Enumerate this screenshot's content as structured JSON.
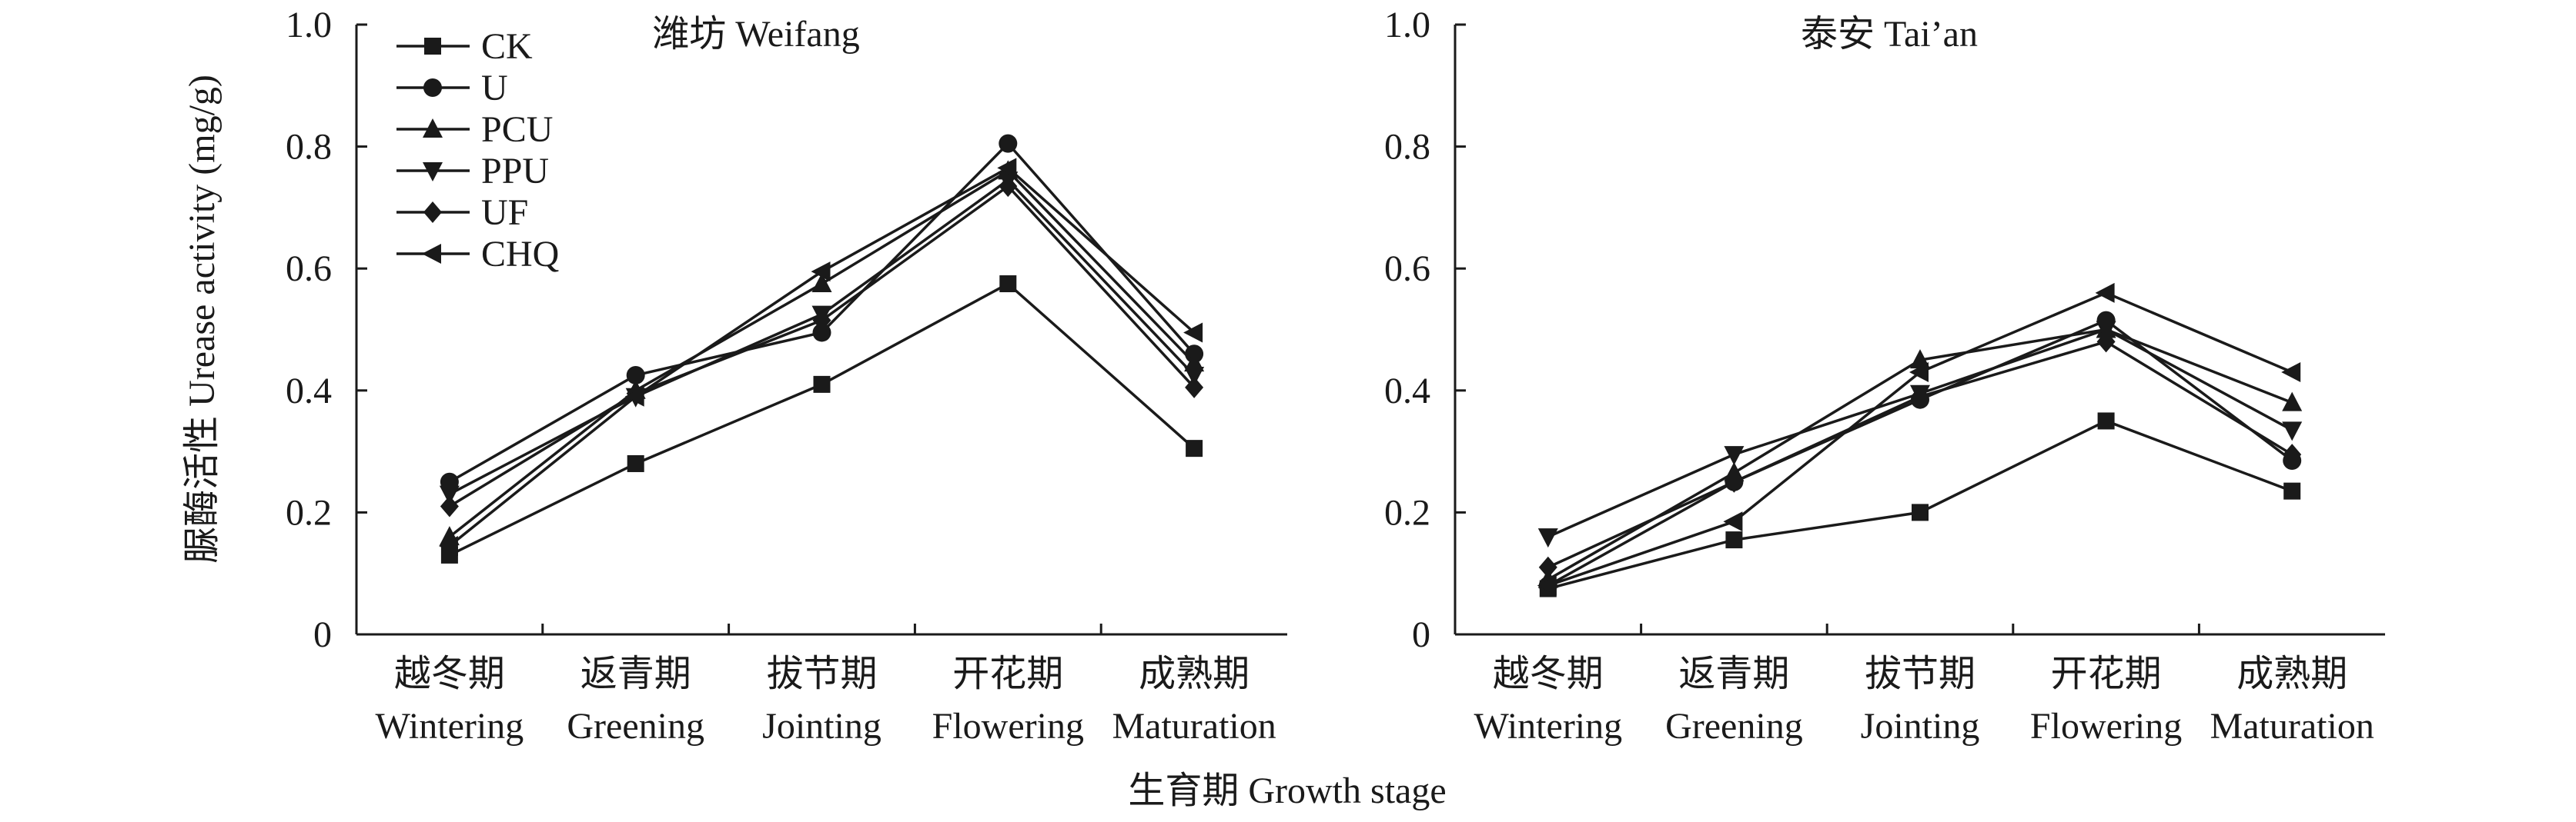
{
  "chart_data": {
    "type": "line",
    "xlabel": "生育期 Growth stage",
    "ylabel": "脲酶活性 Urease activity (mg/g)",
    "categories_cn": [
      "越冬期",
      "返青期",
      "拔节期",
      "开花期",
      "成熟期"
    ],
    "categories_en": [
      "Wintering",
      "Greening",
      "Jointing",
      "Flowering",
      "Maturation"
    ],
    "yticks": [
      "0",
      "0.2",
      "0.4",
      "0.6",
      "0.8",
      "1.0"
    ],
    "ylim": [
      0,
      1.0
    ],
    "legend": {
      "placement": "top-left of first panel",
      "entries": [
        {
          "name": "CK",
          "marker": "square"
        },
        {
          "name": "U",
          "marker": "circle"
        },
        {
          "name": "PCU",
          "marker": "triangle-up"
        },
        {
          "name": "PPU",
          "marker": "triangle-down"
        },
        {
          "name": "UF",
          "marker": "diamond"
        },
        {
          "name": "CHQ",
          "marker": "triangle-left"
        }
      ]
    },
    "panels": [
      {
        "title": "潍坊 Weifang",
        "series": [
          {
            "name": "CK",
            "values": [
              0.13,
              0.28,
              0.41,
              0.575,
              0.305
            ]
          },
          {
            "name": "U",
            "values": [
              0.25,
              0.425,
              0.495,
              0.805,
              0.46
            ]
          },
          {
            "name": "PCU",
            "values": [
              0.16,
              0.4,
              0.575,
              0.76,
              0.445
            ]
          },
          {
            "name": "PPU",
            "values": [
              0.23,
              0.39,
              0.525,
              0.745,
              0.425
            ]
          },
          {
            "name": "UF",
            "values": [
              0.21,
              0.395,
              0.515,
              0.735,
              0.405
            ]
          },
          {
            "name": "CHQ",
            "values": [
              0.145,
              0.39,
              0.595,
              0.765,
              0.495
            ]
          }
        ]
      },
      {
        "title": "泰安 Tai’an",
        "series": [
          {
            "name": "CK",
            "values": [
              0.075,
              0.155,
              0.2,
              0.35,
              0.235
            ]
          },
          {
            "name": "U",
            "values": [
              0.08,
              0.25,
              0.385,
              0.515,
              0.285
            ]
          },
          {
            "name": "PCU",
            "values": [
              0.09,
              0.265,
              0.45,
              0.5,
              0.38
            ]
          },
          {
            "name": "PPU",
            "values": [
              0.16,
              0.295,
              0.395,
              0.5,
              0.335
            ]
          },
          {
            "name": "UF",
            "values": [
              0.11,
              0.25,
              0.39,
              0.48,
              0.295
            ]
          },
          {
            "name": "CHQ",
            "values": [
              0.08,
              0.185,
              0.43,
              0.56,
              0.43
            ]
          }
        ]
      }
    ],
    "colors": {
      "ink": "#1a1a1a",
      "background": "#ffffff"
    },
    "grid": false
  }
}
